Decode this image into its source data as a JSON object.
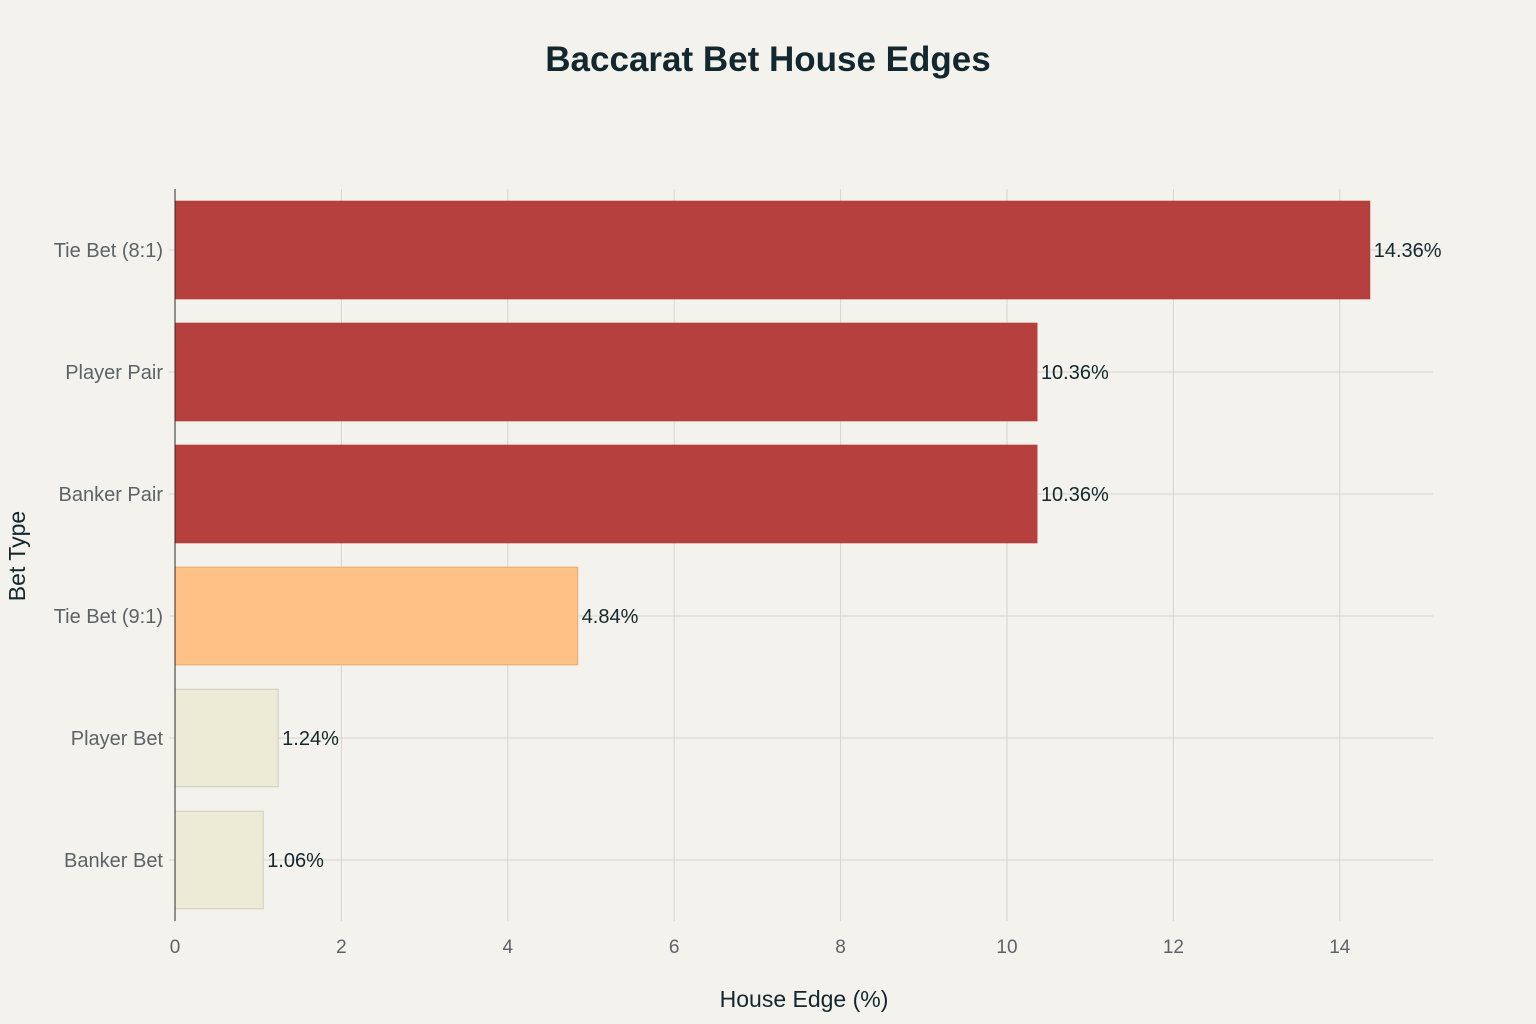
{
  "chart_data": {
    "type": "bar",
    "orientation": "horizontal",
    "title": "Baccarat Bet House Edges",
    "xlabel": "House Edge (%)",
    "ylabel": "Bet Type",
    "xlim": [
      0,
      15.1
    ],
    "x_ticks": [
      0,
      2,
      4,
      6,
      8,
      10,
      12,
      14
    ],
    "grid": true,
    "legend": "none",
    "categories": [
      "Tie Bet (8:1)",
      "Player Pair",
      "Banker Pair",
      "Tie Bet (9:1)",
      "Player Bet",
      "Banker Bet"
    ],
    "values": [
      14.36,
      10.36,
      10.36,
      4.84,
      1.24,
      1.06
    ],
    "data_labels": [
      "14.36%",
      "10.36%",
      "10.36%",
      "4.84%",
      "1.24%",
      "1.06%"
    ],
    "colors": [
      "#b5403e",
      "#b5403e",
      "#b5403e",
      "#ffc185",
      "#ecebd5",
      "#ecebd5"
    ],
    "bar_edge_colors": [
      "#b5403e",
      "#b5403e",
      "#b5403e",
      "#e3ab78",
      "#cfceba",
      "#cfceba"
    ]
  }
}
